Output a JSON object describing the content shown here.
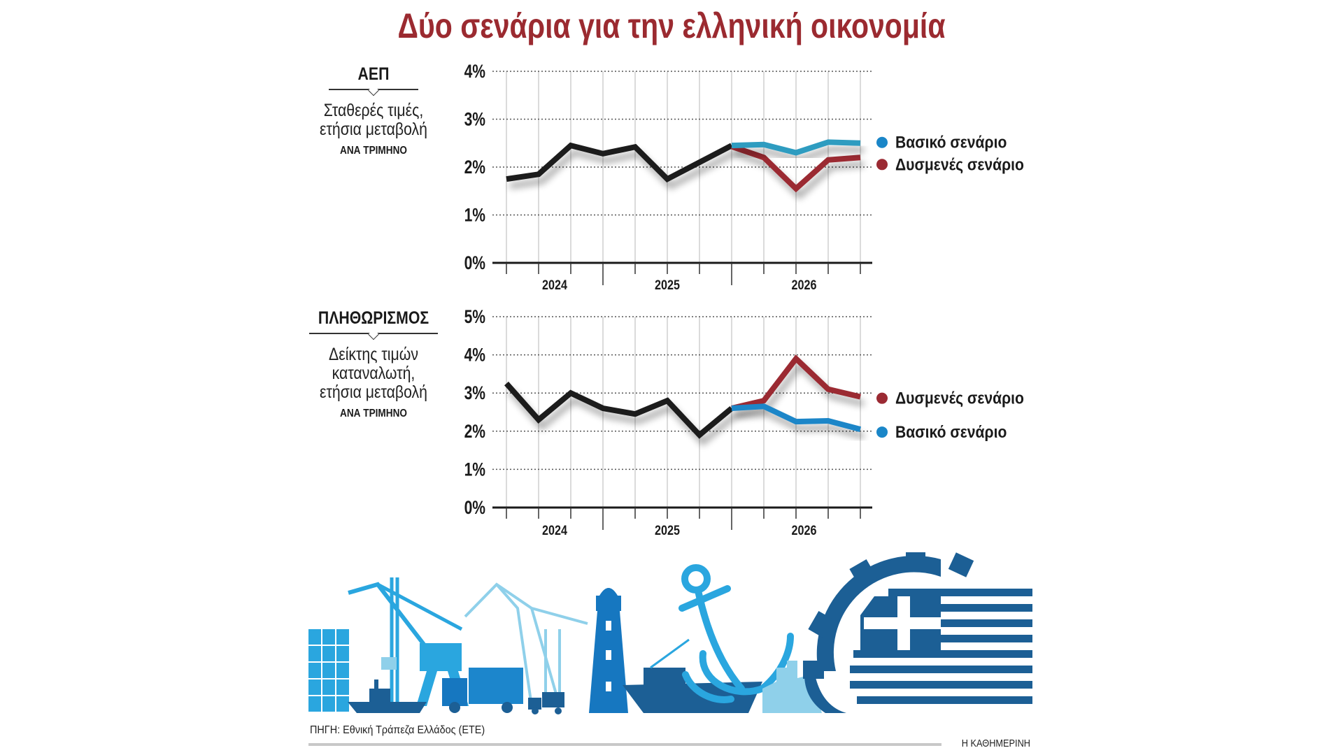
{
  "title": "Δύο σενάρια για την ελληνική οικονομία",
  "colors": {
    "title": "#9b2a30",
    "history": "#1a1a1a",
    "base_gdp": "#2e9cc0",
    "base_cpi": "#1a86c8",
    "adverse": "#9b2a33",
    "legend_base": "#1a86c8",
    "legend_adverse": "#9b2a33"
  },
  "panels": [
    {
      "title": "ΑΕΠ",
      "subtitle": [
        "Σταθερές τιμές,",
        "ετήσια μεταβολή"
      ],
      "period": "ΑΝΑ ΤΡΙΜΗΝΟ"
    },
    {
      "title": "ΠΛΗΘΩΡΙΣΜΟΣ",
      "subtitle": [
        "Δείκτης τιμών",
        "καταναλωτή,",
        "ετήσια μεταβολή"
      ],
      "period": "ΑΝΑ ΤΡΙΜΗΝΟ"
    }
  ],
  "chart_data": [
    {
      "type": "line",
      "ylim": [
        0,
        4
      ],
      "yticks": [
        "0%",
        "1%",
        "2%",
        "3%",
        "4%"
      ],
      "xtick_labels": [
        "2024",
        "2025",
        "2026"
      ],
      "grid": true,
      "legend_placement": "right",
      "series": [
        {
          "key": "history",
          "values": [
            1.75,
            1.85,
            2.45,
            2.28,
            2.42,
            1.75,
            2.1,
            2.45
          ]
        },
        {
          "key": "base",
          "name": "Βασικό σενάριο",
          "start": 7,
          "values": [
            2.45,
            2.47,
            2.3,
            2.52,
            2.5
          ]
        },
        {
          "key": "adverse",
          "name": "Δυσμενές σενάριο",
          "start": 7,
          "values": [
            2.43,
            2.2,
            1.55,
            2.15,
            2.2
          ]
        }
      ]
    },
    {
      "type": "line",
      "ylim": [
        0,
        5
      ],
      "yticks": [
        "0%",
        "1%",
        "2%",
        "3%",
        "4%",
        "5%"
      ],
      "xtick_labels": [
        "2024",
        "2025",
        "2026"
      ],
      "grid": true,
      "legend_placement": "right",
      "series": [
        {
          "key": "history",
          "values": [
            3.25,
            2.3,
            3.0,
            2.6,
            2.45,
            2.8,
            1.9,
            2.6
          ]
        },
        {
          "key": "adverse",
          "name": "Δυσμενές σενάριο",
          "start": 7,
          "values": [
            2.6,
            2.8,
            3.9,
            3.1,
            2.9
          ]
        },
        {
          "key": "base",
          "name": "Βασικό σενάριο",
          "start": 7,
          "values": [
            2.6,
            2.65,
            2.25,
            2.27,
            2.05
          ]
        }
      ]
    }
  ],
  "footer": {
    "source": "ΠΗΓΗ: Εθνική Τράπεζα Ελλάδος (ΕΤΕ)",
    "brand": "Η ΚΑΘΗΜΕΡΙΝΗ"
  }
}
